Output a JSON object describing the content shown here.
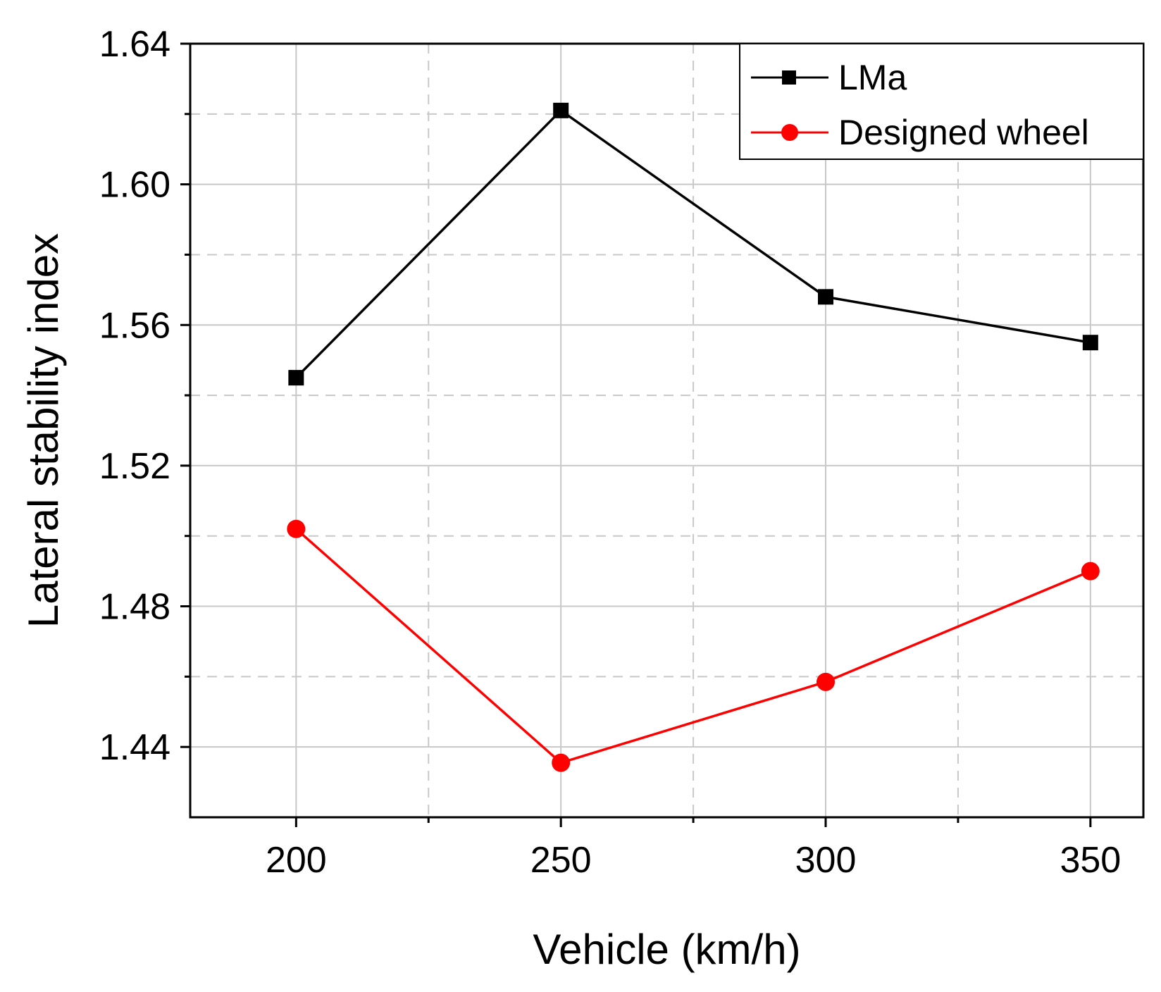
{
  "chart_data": {
    "type": "line",
    "title": "",
    "xlabel": "Vehicle (km/h)",
    "ylabel": "Lateral stability index",
    "x": [
      200,
      250,
      300,
      350
    ],
    "x_tick_labels": [
      "200",
      "250",
      "300",
      "350"
    ],
    "y_tick_labels": [
      "1.44",
      "1.48",
      "1.52",
      "1.56",
      "1.60",
      "1.64"
    ],
    "xlim": [
      180,
      360
    ],
    "ylim": [
      1.42,
      1.64
    ],
    "x_major_ticks": [
      200,
      250,
      300,
      350
    ],
    "x_minor_ticks": [
      225,
      275,
      325
    ],
    "y_major_ticks": [
      1.44,
      1.48,
      1.52,
      1.56,
      1.6,
      1.64
    ],
    "y_minor_ticks": [
      1.46,
      1.5,
      1.54,
      1.58,
      1.62
    ],
    "grid": true,
    "legend_position": "top-right",
    "series": [
      {
        "name": "LMa",
        "marker": "square",
        "color": "#000000",
        "values": [
          1.545,
          1.621,
          1.568,
          1.555
        ]
      },
      {
        "name": "Designed wheel",
        "marker": "circle",
        "color": "#ff0000",
        "values": [
          1.502,
          1.4355,
          1.4585,
          1.49
        ]
      }
    ]
  }
}
